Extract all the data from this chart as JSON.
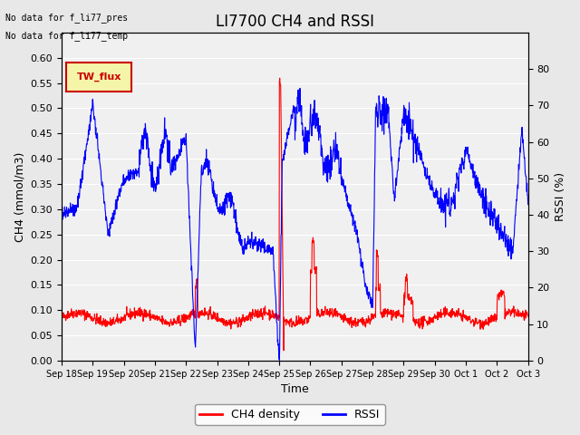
{
  "title": "LI7700 CH4 and RSSI",
  "xlabel": "Time",
  "ylabel_left": "CH4 (mmol/m3)",
  "ylabel_right": "RSSI (%)",
  "annotation1": "No data for f_li77_pres",
  "annotation2": "No data for f_li77_temp",
  "legend_label": "TW_flux",
  "legend_label_ch4": "CH4 density",
  "legend_label_rssi": "RSSI",
  "ylim_left": [
    0.0,
    0.65
  ],
  "ylim_right": [
    0,
    90
  ],
  "yticks_left": [
    0.0,
    0.05,
    0.1,
    0.15,
    0.2,
    0.25,
    0.3,
    0.35,
    0.4,
    0.45,
    0.5,
    0.55,
    0.6
  ],
  "yticks_right": [
    0,
    10,
    20,
    30,
    40,
    50,
    60,
    70,
    80
  ],
  "xtick_labels": [
    "Sep 18",
    "Sep 19",
    "Sep 20",
    "Sep 21",
    "Sep 22",
    "Sep 23",
    "Sep 24",
    "Sep 25",
    "Sep 26",
    "Sep 27",
    "Sep 28",
    "Sep 29",
    "Sep 30",
    "Oct 1",
    "Oct 2",
    "Oct 3"
  ],
  "bg_color": "#e8e8e8",
  "plot_bg_color": "#f0f0f0",
  "ch4_color": "red",
  "rssi_color": "blue",
  "legend_bg": "#f5f5aa",
  "legend_border": "#cc0000"
}
